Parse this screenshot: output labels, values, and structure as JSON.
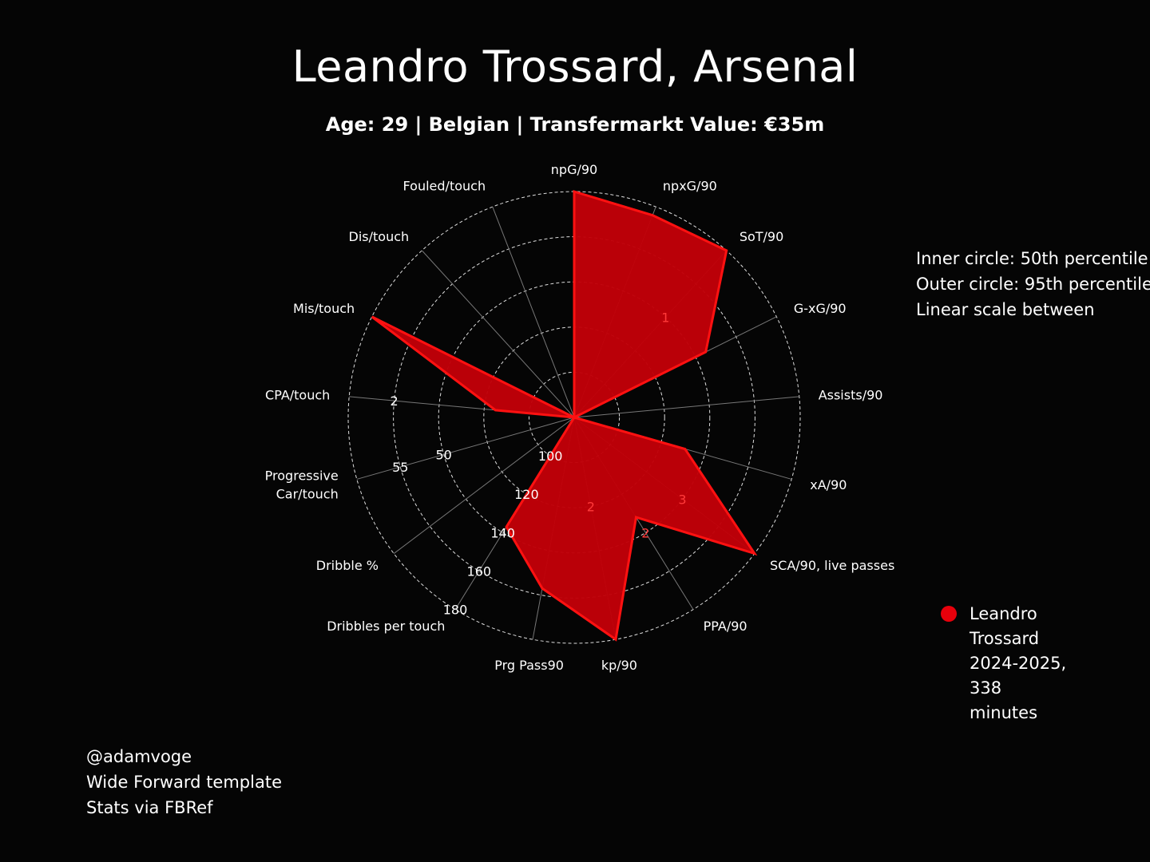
{
  "header": {
    "title": "Leandro Trossard, Arsenal",
    "subtitle": "Age: 29 | Belgian | Transfermarkt Value: €35m"
  },
  "notes": {
    "line1": "Inner circle: 50th percentile",
    "line2": "Outer circle: 95th percentile",
    "line3": "Linear scale between"
  },
  "legend": {
    "label": "Leandro Trossard 2024-2025, 338 minutes",
    "color": "#e8000b"
  },
  "footer": {
    "line1": "@adamvoge",
    "line2": "Wide Forward template",
    "line3": "Stats via FBRef"
  },
  "chart_data": {
    "type": "radar",
    "axes": [
      {
        "label": "npG/90",
        "value": 1.0
      },
      {
        "label": "npxG/90",
        "value": 0.96
      },
      {
        "label": "SoT/90",
        "value": 1.0
      },
      {
        "label": "G-xG/90",
        "value": 0.65
      },
      {
        "label": "Assists/90",
        "value": 0.0
      },
      {
        "label": "xA/90",
        "value": 0.51
      },
      {
        "label": "SCA/90, live passes",
        "value": 1.0
      },
      {
        "label": "PPA/90",
        "value": 0.52
      },
      {
        "label": "kp/90",
        "value": 1.0
      },
      {
        "label": "Prg Pass90",
        "value": 0.77
      },
      {
        "label": "Dribbles per touch",
        "value": 0.57
      },
      {
        "label": "Dribble %",
        "value": 0.0
      },
      {
        "label": "Progressive\nCar/touch",
        "value": 0.0
      },
      {
        "label": "CPA/touch",
        "value": 0.35
      },
      {
        "label": "Mis/touch",
        "value": 1.0
      },
      {
        "label": "Dis/touch",
        "value": 0.0
      },
      {
        "label": "Fouled/touch",
        "value": 0.0
      }
    ],
    "ring_values": [
      0.2,
      0.4,
      0.6,
      0.8,
      1.0
    ],
    "tick_labels": [
      {
        "text": "1",
        "axis": 2,
        "ring": 0.6,
        "color": "#ff3a3a"
      },
      {
        "text": "3",
        "axis": 6,
        "ring": 0.6,
        "color": "#ff3a3a"
      },
      {
        "text": "2",
        "axis": 7,
        "ring": 0.6,
        "color": "#ff3a3a"
      },
      {
        "text": "2",
        "axis": 8,
        "ring": 0.4,
        "color": "#ff3a3a"
      },
      {
        "text": "100",
        "axis": 10,
        "ring": 0.2,
        "color": "#ffffff"
      },
      {
        "text": "120",
        "axis": 10,
        "ring": 0.4,
        "color": "#ffffff"
      },
      {
        "text": "140",
        "axis": 10,
        "ring": 0.6,
        "color": "#ffffff"
      },
      {
        "text": "160",
        "axis": 10,
        "ring": 0.8,
        "color": "#ffffff"
      },
      {
        "text": "180",
        "axis": 10,
        "ring": 1.0,
        "color": "#ffffff"
      },
      {
        "text": "50",
        "axis": 12,
        "ring": 0.6,
        "color": "#ffffff"
      },
      {
        "text": "55",
        "axis": 12,
        "ring": 0.8,
        "color": "#ffffff"
      },
      {
        "text": "2",
        "axis": 13,
        "ring": 0.8,
        "color": "#ffffff"
      }
    ],
    "fill_color": "#c00008",
    "edge_color": "#ff1111"
  }
}
